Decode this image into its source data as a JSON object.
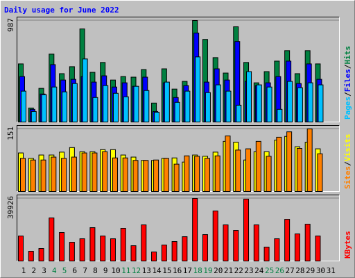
{
  "chart_data": [
    {
      "type": "bar",
      "title": "Daily usage for June 2022",
      "ylim": [
        0,
        987
      ],
      "yticks": [
        987
      ],
      "legend_separator": "/",
      "series": [
        {
          "name": "Hits",
          "color": "#008040",
          "values": [
            565,
            136,
            327,
            660,
            470,
            538,
            905,
            483,
            579,
            408,
            442,
            436,
            510,
            184,
            517,
            320,
            395,
            987,
            803,
            626,
            476,
            926,
            579,
            381,
            490,
            592,
            694,
            470,
            694,
            565,
            null
          ]
        },
        {
          "name": "Files",
          "color": "#0000ff",
          "values": [
            442,
            123,
            272,
            558,
            408,
            415,
            442,
            388,
            449,
            340,
            381,
            347,
            436,
            102,
            381,
            238,
            354,
            865,
            388,
            517,
            408,
            783,
            395,
            354,
            381,
            442,
            592,
            374,
            565,
            415,
            null
          ]
        },
        {
          "name": "Pages",
          "color": "#00c0ff",
          "values": [
            300,
            102,
            265,
            340,
            293,
            374,
            613,
            238,
            354,
            279,
            245,
            347,
            306,
            95,
            388,
            191,
            300,
            633,
            286,
            361,
            300,
            163,
            490,
            361,
            340,
            123,
            395,
            333,
            381,
            361,
            null
          ]
        }
      ]
    },
    {
      "type": "bar",
      "ylim": [
        0,
        151
      ],
      "yticks": [
        151
      ],
      "legend_separator": "/",
      "series": [
        {
          "name": "Visits",
          "color": "#ffff00",
          "values": [
            93,
            80,
            88,
            88,
            95,
            106,
            96,
            96,
            101,
            101,
            88,
            83,
            75,
            75,
            80,
            81,
            71,
            88,
            85,
            95,
            121,
            119,
            76,
            96,
            96,
            124,
            133,
            108,
            119,
            103,
            null
          ]
        },
        {
          "name": "Sites",
          "color": "#ff8000",
          "values": [
            80,
            76,
            76,
            83,
            80,
            83,
            93,
            93,
            96,
            81,
            81,
            75,
            75,
            76,
            80,
            66,
            86,
            85,
            80,
            86,
            134,
            100,
            103,
            121,
            85,
            131,
            144,
            104,
            151,
            91,
            null
          ]
        }
      ]
    },
    {
      "type": "bar",
      "ylim": [
        0,
        39926
      ],
      "yticks": [
        39926
      ],
      "categories": [
        "1",
        "2",
        "3",
        "4",
        "5",
        "6",
        "7",
        "8",
        "9",
        "10",
        "11",
        "12",
        "13",
        "14",
        "15",
        "16",
        "17",
        "18",
        "19",
        "20",
        "21",
        "22",
        "23",
        "24",
        "25",
        "26",
        "27",
        "28",
        "29",
        "30",
        "31"
      ],
      "label_colors": [
        "#000000",
        "#000000",
        "#000000",
        "#008040",
        "#008040",
        "#000000",
        "#000000",
        "#000000",
        "#000000",
        "#000000",
        "#008040",
        "#008040",
        "#000000",
        "#000000",
        "#000000",
        "#000000",
        "#000000",
        "#008040",
        "#008040",
        "#000000",
        "#000000",
        "#000000",
        "#000000",
        "#000000",
        "#008040",
        "#008040",
        "#000000",
        "#000000",
        "#000000",
        "#000000",
        "#000000"
      ],
      "series": [
        {
          "name": "KBytes",
          "color": "#ff0000",
          "values": [
            15950,
            6200,
            7970,
            27470,
            18170,
            11960,
            14180,
            21270,
            15950,
            14180,
            20830,
            9750,
            23040,
            5760,
            10190,
            12400,
            15500,
            39926,
            16840,
            31900,
            23040,
            19490,
            39500,
            23040,
            8860,
            14180,
            26580,
            17280,
            23480,
            15950,
            null
          ]
        }
      ]
    }
  ]
}
